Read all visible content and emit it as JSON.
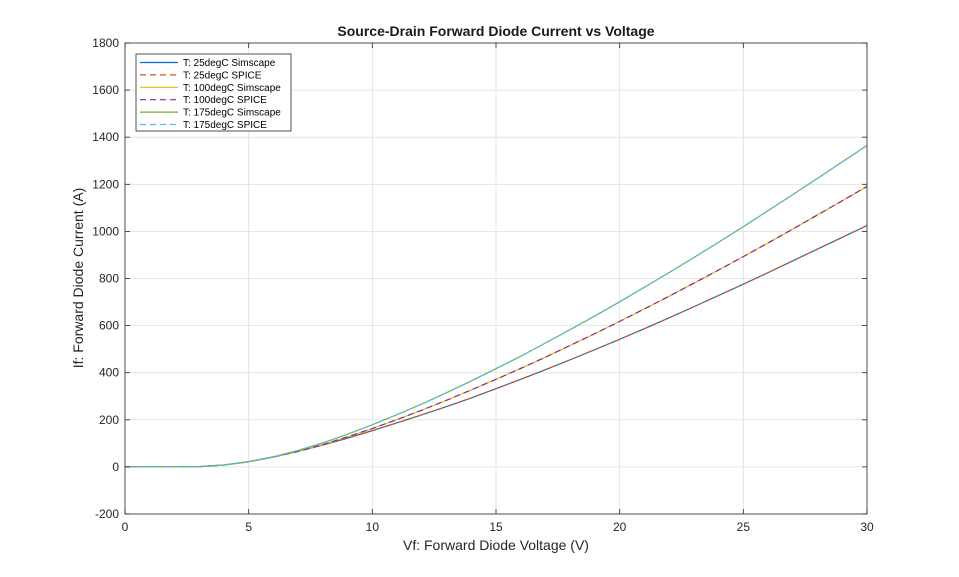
{
  "chart_data": {
    "type": "line",
    "title": "Source-Drain Forward Diode Current vs Voltage",
    "xlabel": "Vf: Forward Diode Voltage (V)",
    "ylabel": "If: Forward Diode Current (A)",
    "xlim": [
      0,
      30
    ],
    "ylim": [
      -200,
      1800
    ],
    "xticks": [
      0,
      5,
      10,
      15,
      20,
      25,
      30
    ],
    "yticks": [
      -200,
      0,
      200,
      400,
      600,
      800,
      1000,
      1200,
      1400,
      1600,
      1800
    ],
    "grid": true,
    "legend_position": "top-left",
    "x": [
      0,
      2,
      3,
      4,
      5,
      6,
      7,
      8,
      9,
      10,
      11,
      12,
      13,
      14,
      15,
      16,
      17,
      18,
      19,
      20,
      21,
      22,
      23,
      24,
      25,
      26,
      27,
      28,
      29,
      30
    ],
    "series": [
      {
        "name": "T: 25degC Simscape",
        "color": "#0072BD",
        "dash": "solid",
        "values": [
          0,
          0,
          1,
          8,
          22,
          42,
          66,
          93,
          122,
          154,
          187,
          221,
          256,
          293,
          332,
          372,
          413,
          455,
          498,
          542,
          587,
          633,
          680,
          728,
          776,
          825,
          875,
          925,
          975,
          1025
        ]
      },
      {
        "name": "T: 25degC SPICE",
        "color": "#D95319",
        "dash": "dashed",
        "values": [
          0,
          0,
          1,
          8,
          22,
          42,
          66,
          93,
          122,
          154,
          187,
          221,
          256,
          293,
          332,
          372,
          413,
          455,
          498,
          542,
          587,
          633,
          680,
          728,
          776,
          825,
          875,
          925,
          975,
          1025
        ]
      },
      {
        "name": "T: 100degC Simscape",
        "color": "#EDB120",
        "dash": "solid",
        "values": [
          0,
          0,
          1,
          8,
          22,
          42,
          66,
          95,
          128,
          163,
          201,
          241,
          283,
          327,
          372,
          418,
          466,
          516,
          566,
          618,
          671,
          725,
          780,
          836,
          893,
          951,
          1010,
          1070,
          1130,
          1191
        ]
      },
      {
        "name": "T: 100degC SPICE",
        "color": "#7E2F8E",
        "dash": "dashed",
        "values": [
          0,
          0,
          1,
          8,
          22,
          42,
          66,
          95,
          128,
          163,
          201,
          241,
          283,
          327,
          372,
          418,
          466,
          516,
          566,
          618,
          671,
          725,
          780,
          836,
          893,
          951,
          1010,
          1070,
          1130,
          1191
        ]
      },
      {
        "name": "T: 175degC Simscape",
        "color": "#77AC30",
        "dash": "solid",
        "values": [
          0,
          0,
          1,
          8,
          22,
          43,
          70,
          102,
          139,
          179,
          222,
          267,
          315,
          365,
          417,
          470,
          526,
          583,
          641,
          701,
          763,
          825,
          889,
          954,
          1020,
          1088,
          1156,
          1225,
          1295,
          1365
        ]
      },
      {
        "name": "T: 175degC SPICE",
        "color": "#4DBEEE",
        "dash": "dashed",
        "values": [
          0,
          0,
          1,
          8,
          22,
          43,
          70,
          102,
          139,
          179,
          222,
          267,
          315,
          365,
          417,
          470,
          526,
          583,
          641,
          701,
          763,
          825,
          889,
          954,
          1020,
          1088,
          1156,
          1225,
          1295,
          1365
        ]
      }
    ]
  }
}
